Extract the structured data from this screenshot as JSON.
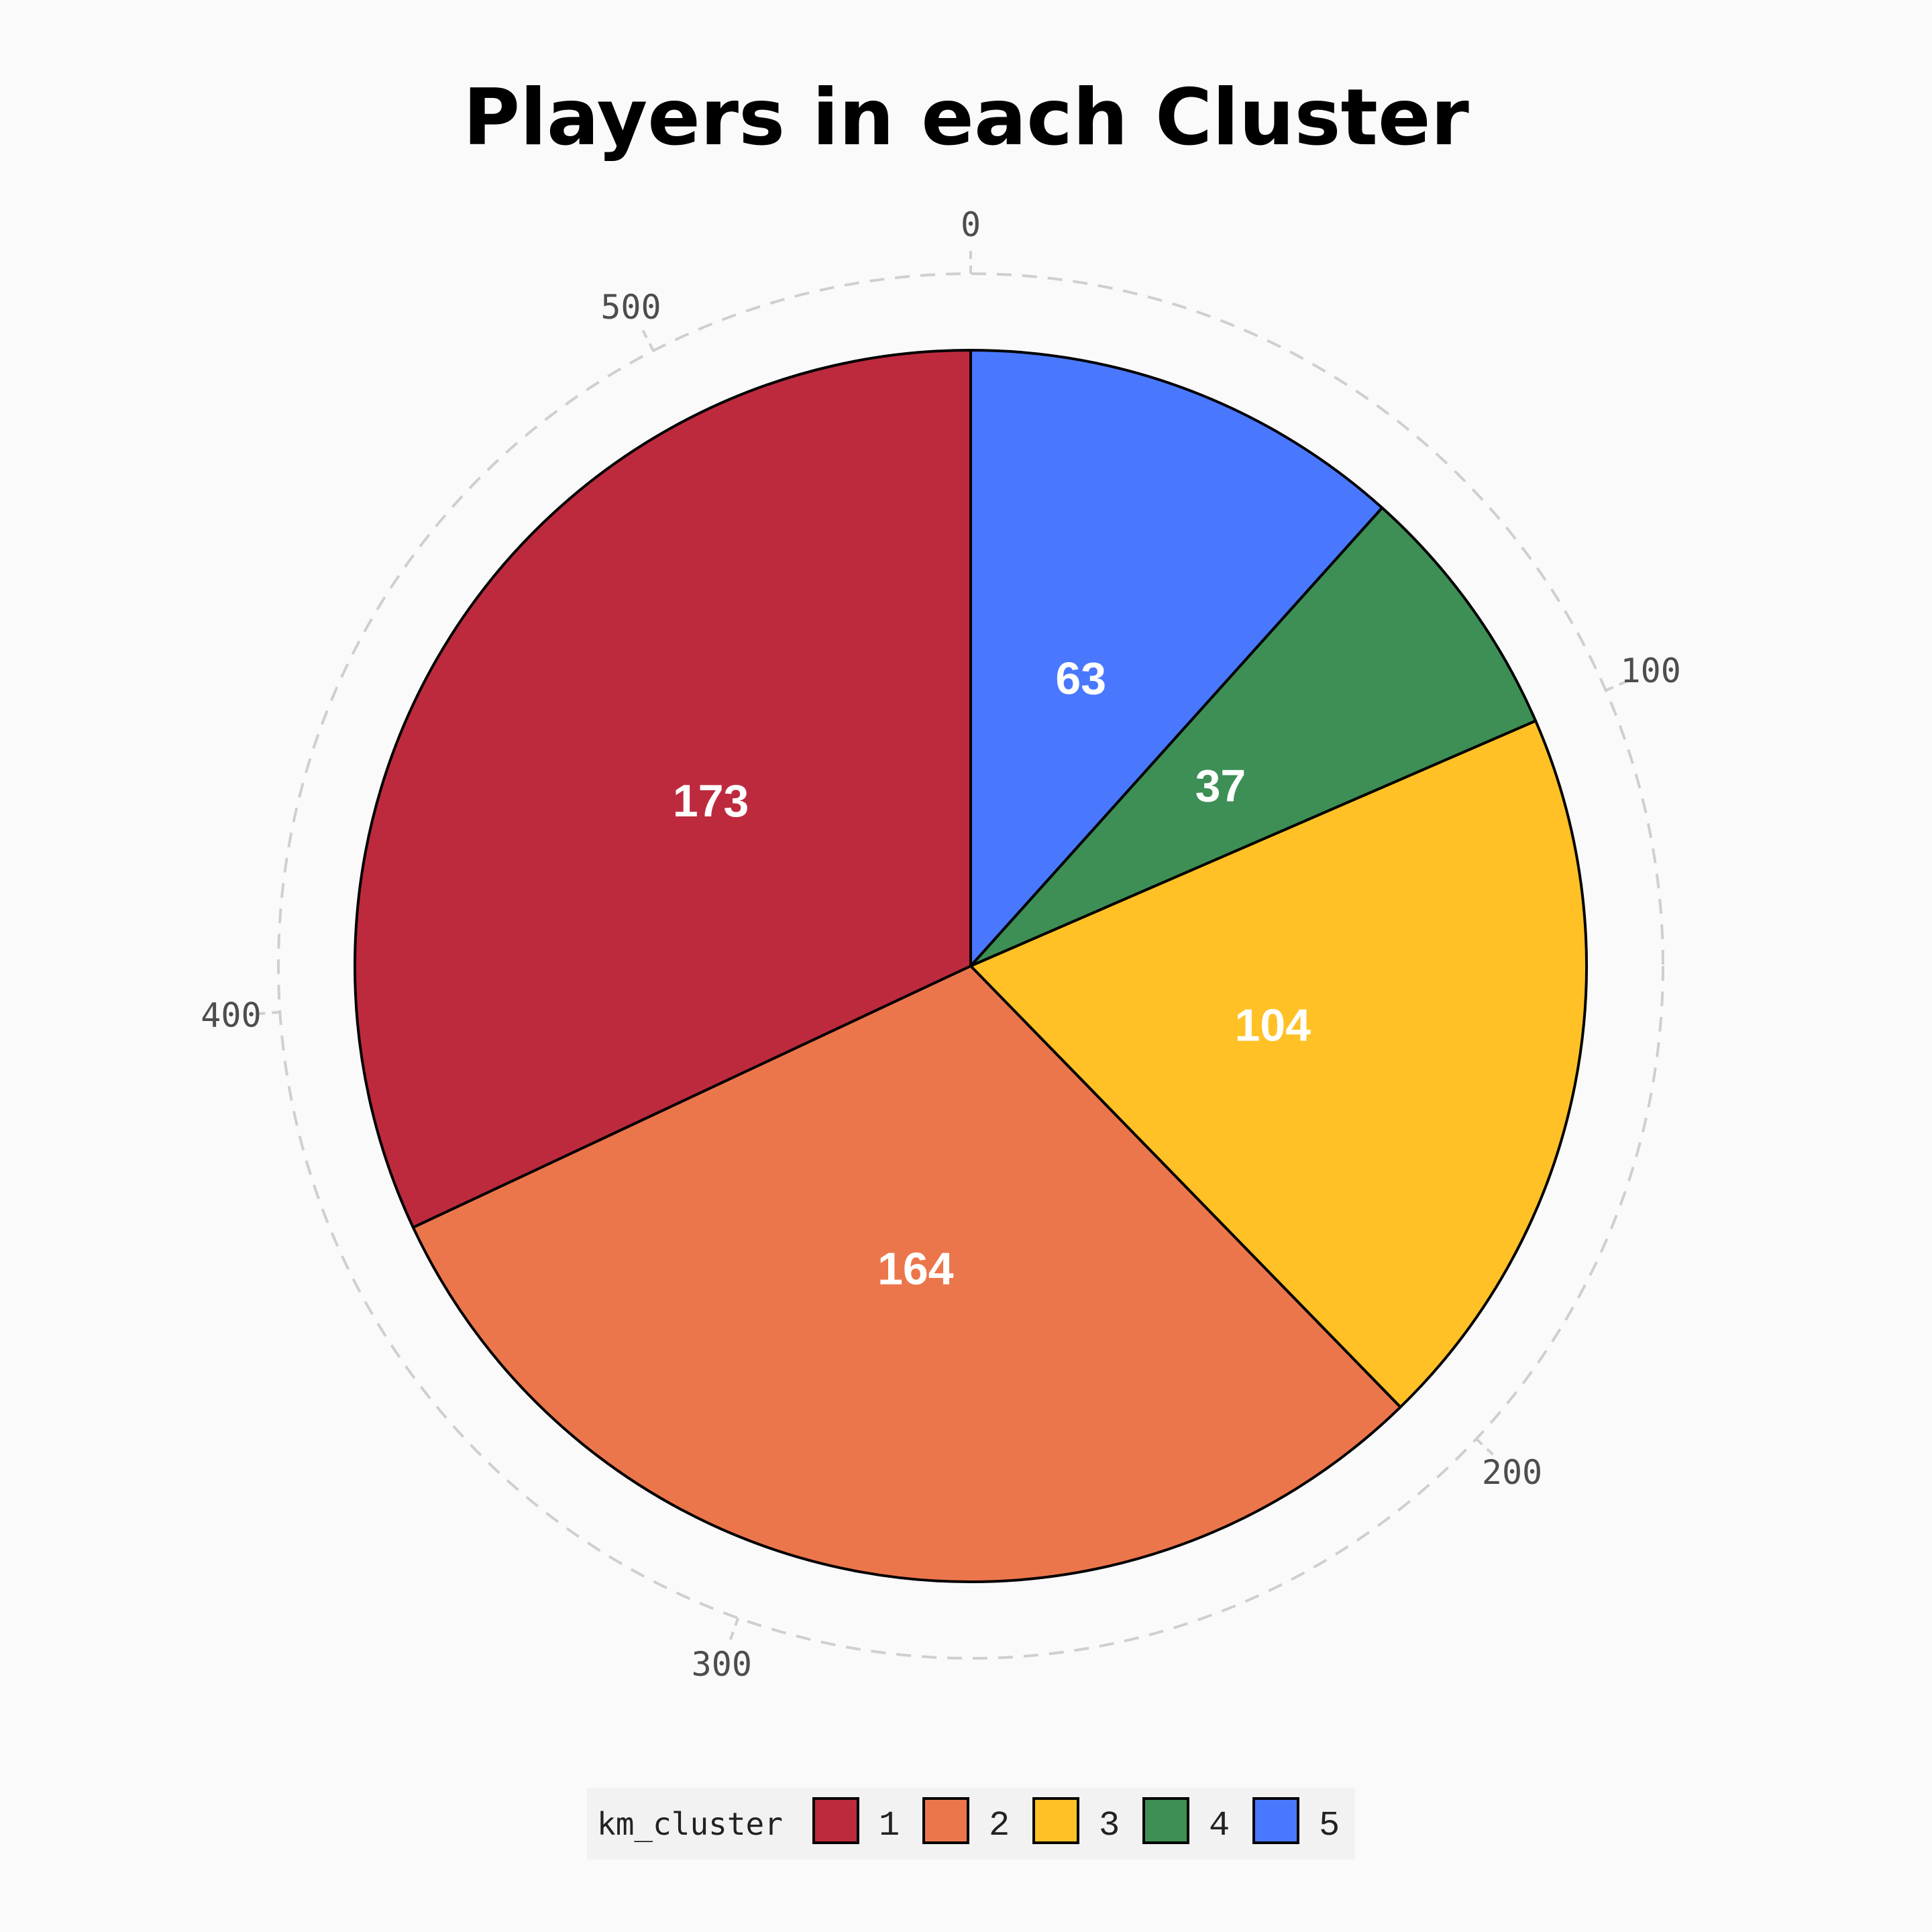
{
  "chart_data": {
    "type": "pie",
    "title": "Players in each Cluster",
    "categories": [
      "1",
      "2",
      "3",
      "4",
      "5"
    ],
    "values": [
      173,
      164,
      104,
      37,
      63
    ],
    "colors": [
      "#bd2a3e",
      "#ec764b",
      "#ffc126",
      "#3d8f55",
      "#4978ff"
    ],
    "radial_axis": {
      "ticks": [
        "0",
        "100",
        "200",
        "300",
        "400",
        "500"
      ],
      "tick_values": [
        0,
        100,
        200,
        300,
        400,
        500
      ],
      "total": 541,
      "gridline": "dashed"
    },
    "legend": {
      "title": "km_cluster",
      "placement": "bottom",
      "entries": [
        "1",
        "2",
        "3",
        "4",
        "5"
      ]
    }
  }
}
